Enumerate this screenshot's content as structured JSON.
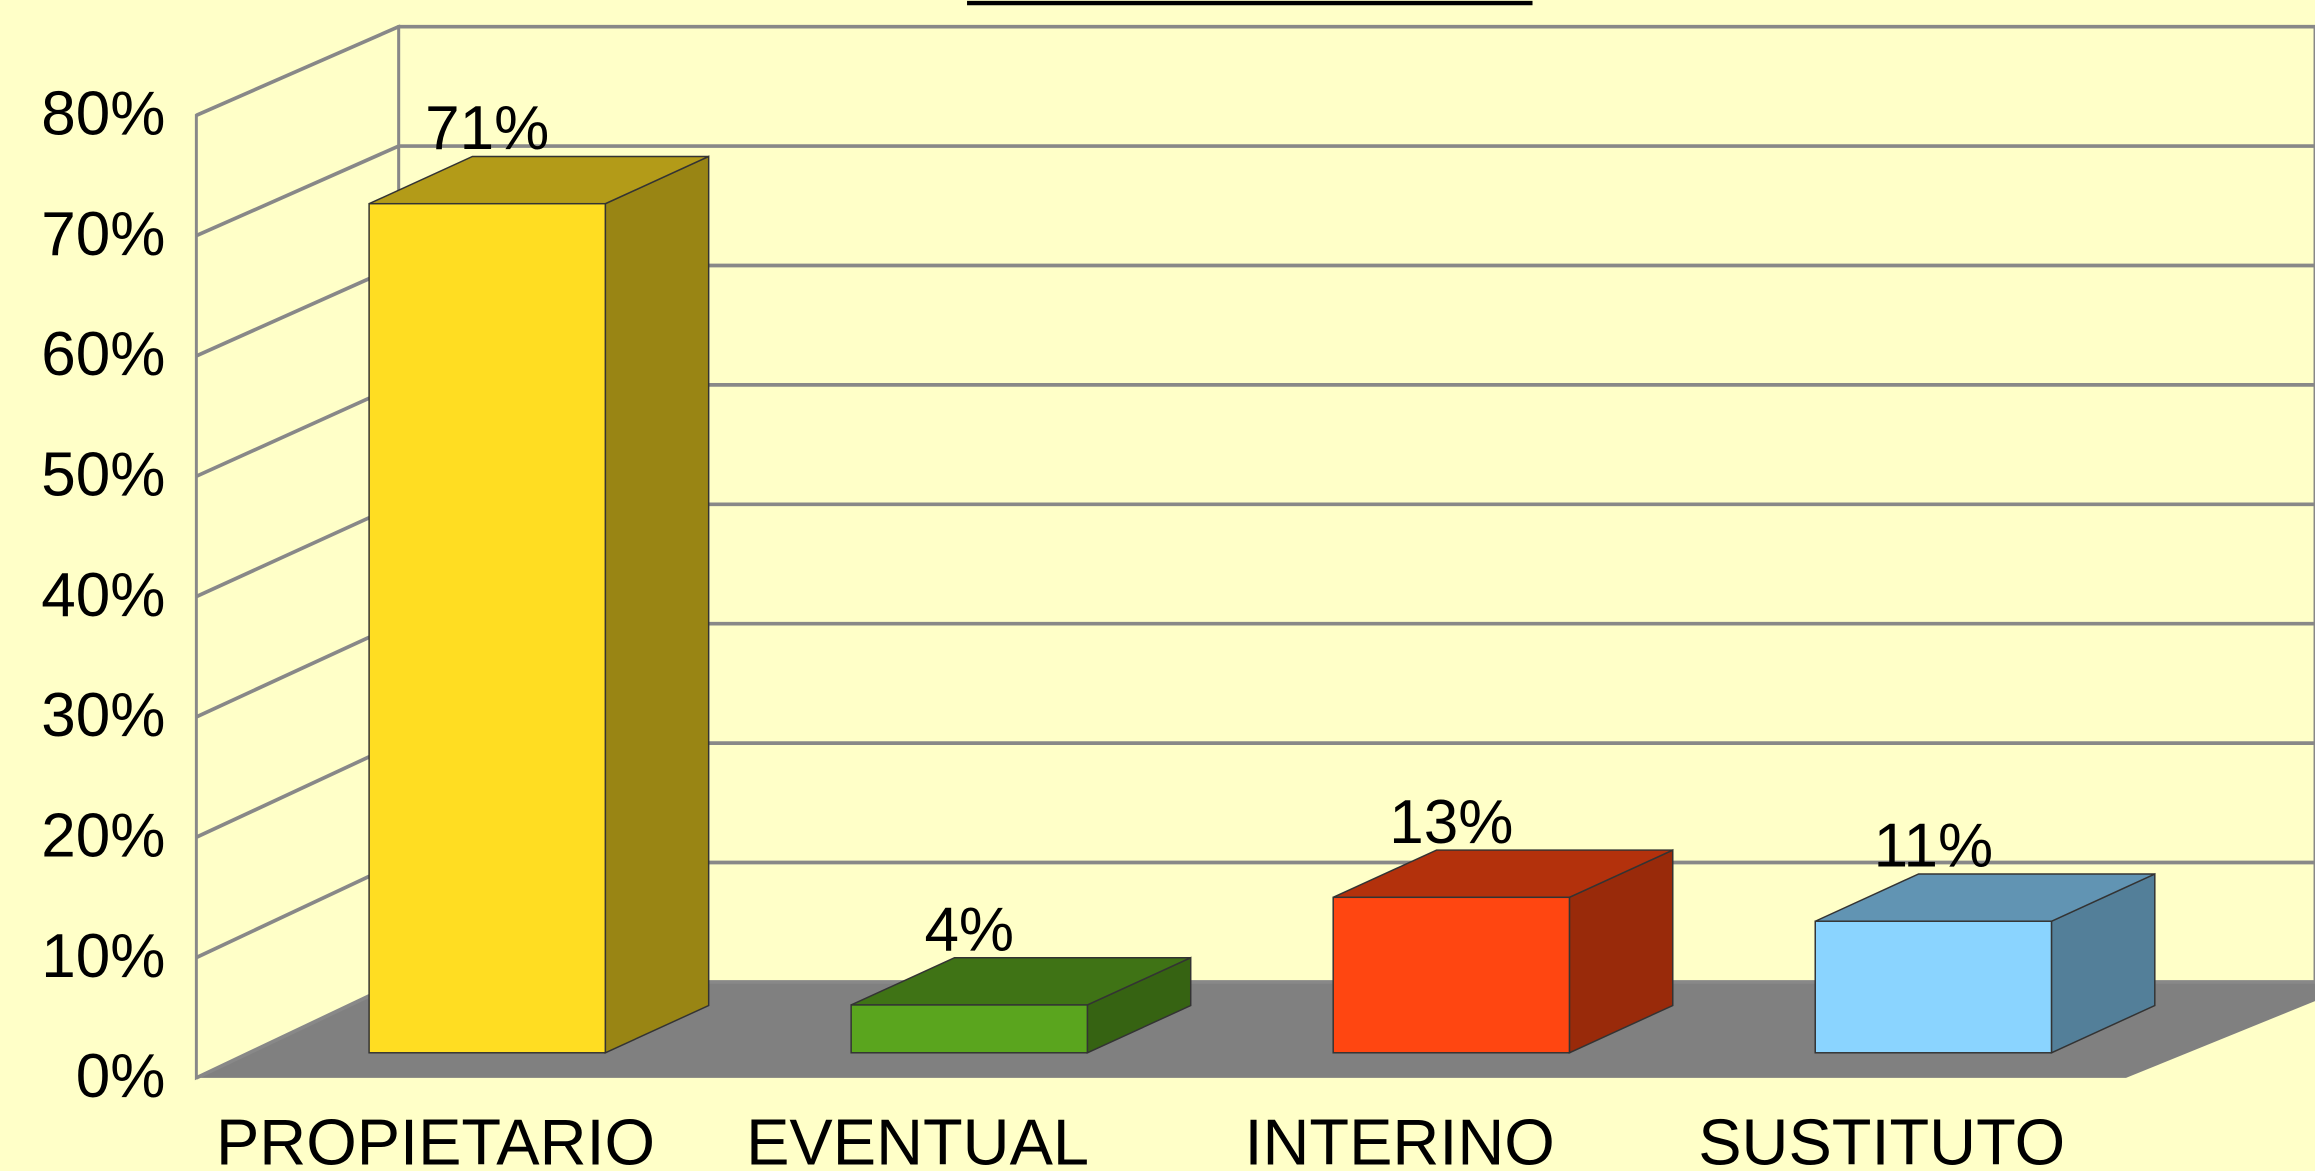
{
  "chart_data": {
    "type": "bar3d",
    "categories": [
      "PROPIETARIO",
      "EVENTUAL",
      "INTERINO",
      "SUSTITUTO"
    ],
    "values": [
      71,
      4,
      13,
      11
    ],
    "value_labels": [
      "71%",
      "4%",
      "13%",
      "11%"
    ],
    "colors": [
      "#ffdd22",
      "#5aa51e",
      "#ff4611",
      "#8ad4ff"
    ],
    "ylim": [
      0,
      80
    ],
    "yticks": [
      {
        "value": 0,
        "label": "0%"
      },
      {
        "value": 10,
        "label": "10%"
      },
      {
        "value": 20,
        "label": "20%"
      },
      {
        "value": 30,
        "label": "30%"
      },
      {
        "value": 40,
        "label": "40%"
      },
      {
        "value": 50,
        "label": "50%"
      },
      {
        "value": 60,
        "label": "60%"
      },
      {
        "value": 70,
        "label": "70%"
      },
      {
        "value": 80,
        "label": "80%"
      }
    ],
    "grid": true
  }
}
